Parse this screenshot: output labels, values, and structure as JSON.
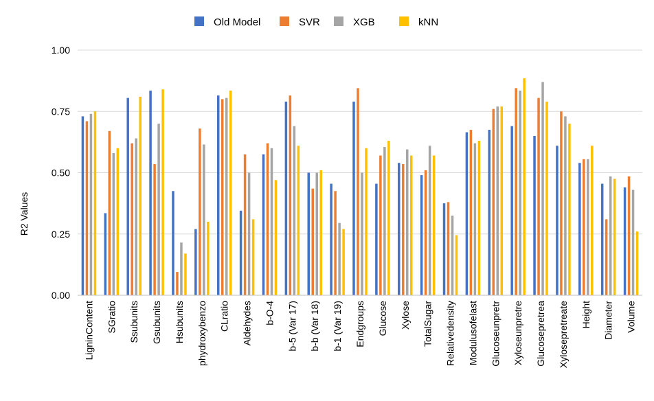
{
  "chart_data": {
    "type": "bar",
    "title": "",
    "xlabel": "",
    "ylabel": "R2 Values",
    "ylim": [
      0,
      1
    ],
    "yticks": [
      "0.00",
      "0.25",
      "0.50",
      "0.75",
      "1.00"
    ],
    "grid": true,
    "legend_position": "top",
    "categories": [
      "LigninContent",
      "SGratio",
      "Ssubunits",
      "Gsubunits",
      "Hsubunits",
      "phydroxybenzo",
      "CLratio",
      "Aldehydes",
      "b-O-4",
      "b-5 (Var 17)",
      "b-b (Var 18)",
      "b-1 (Var 19)",
      "Endgroups",
      "Glucose",
      "Xylose",
      "TotalSugar",
      "Relativedensity",
      "Modulusofelast",
      "Glucoseunpretr",
      "Xyloseunpretre",
      "Glucosepretrea",
      "Xylosepretreate",
      "Height",
      "Diameter",
      "Volume"
    ],
    "series": [
      {
        "name": "Old Model",
        "color": "#4472C4",
        "values": [
          0.73,
          0.335,
          0.805,
          0.835,
          0.425,
          0.27,
          0.815,
          0.345,
          0.575,
          0.79,
          0.5,
          0.455,
          0.79,
          0.455,
          0.54,
          0.49,
          0.375,
          0.665,
          0.675,
          0.69,
          0.65,
          0.61,
          0.54,
          0.455,
          0.44
        ]
      },
      {
        "name": "SVR",
        "color": "#ED7D31",
        "values": [
          0.71,
          0.67,
          0.62,
          0.535,
          0.095,
          0.68,
          0.8,
          0.575,
          0.62,
          0.815,
          0.435,
          0.425,
          0.845,
          0.57,
          0.535,
          0.51,
          0.38,
          0.675,
          0.76,
          0.845,
          0.805,
          0.75,
          0.555,
          0.31,
          0.485
        ]
      },
      {
        "name": "XGB",
        "color": "#A5A5A5",
        "values": [
          0.74,
          0.58,
          0.64,
          0.7,
          0.215,
          0.615,
          0.805,
          0.5,
          0.6,
          0.69,
          0.5,
          0.295,
          0.5,
          0.605,
          0.595,
          0.61,
          0.325,
          0.62,
          0.77,
          0.835,
          0.87,
          0.73,
          0.555,
          0.485,
          0.43
        ]
      },
      {
        "name": "kNN",
        "color": "#FFC000",
        "values": [
          0.75,
          0.6,
          0.81,
          0.84,
          0.17,
          0.3,
          0.835,
          0.31,
          0.47,
          0.61,
          0.51,
          0.27,
          0.6,
          0.63,
          0.57,
          0.57,
          0.245,
          0.63,
          0.77,
          0.885,
          0.79,
          0.7,
          0.61,
          0.475,
          0.26
        ]
      }
    ]
  }
}
